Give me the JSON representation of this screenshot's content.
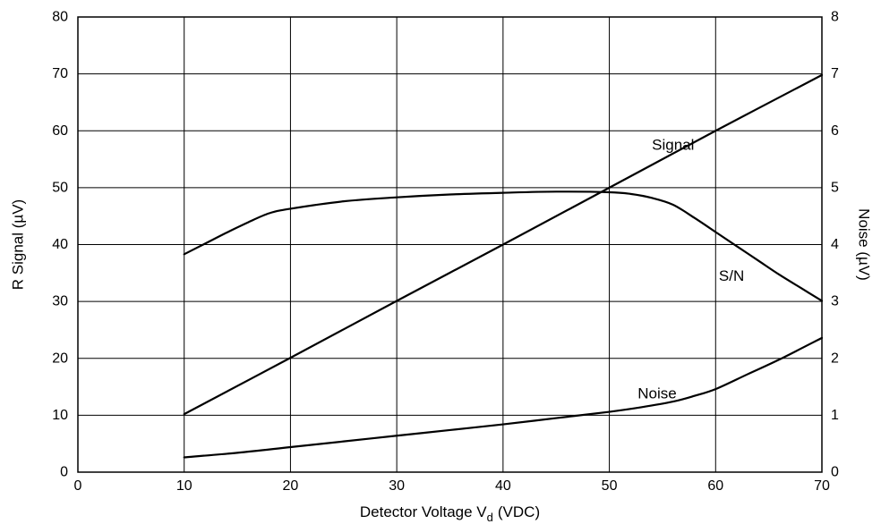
{
  "chart_data": {
    "type": "line",
    "xlabel": "Detector Voltage V",
    "xlabel_subscript": "d",
    "xlabel_unit": "(VDC)",
    "ylabel_left": "R Signal (µV)",
    "ylabel_right": "Noise (µV)",
    "xlim": [
      0,
      70
    ],
    "ylim_left": [
      0,
      80
    ],
    "ylim_right": [
      0,
      8
    ],
    "x_ticks": [
      "0",
      "10",
      "20",
      "30",
      "40",
      "50",
      "60",
      "70"
    ],
    "y_ticks_left": [
      "0",
      "10",
      "20",
      "30",
      "40",
      "50",
      "60",
      "70",
      "80"
    ],
    "y_ticks_right": [
      "0",
      "1",
      "2",
      "3",
      "4",
      "5",
      "6",
      "7",
      "8"
    ],
    "grid": true,
    "series": [
      {
        "name": "Signal",
        "axis": "left",
        "x": [
          10,
          20,
          30,
          40,
          50,
          60,
          70
        ],
        "y": [
          10.2,
          20.1,
          30.1,
          40.0,
          50.0,
          60.0,
          69.8
        ]
      },
      {
        "name": "S/N",
        "axis": "left",
        "x": [
          10,
          12,
          14,
          16,
          18,
          20,
          25,
          30,
          35,
          40,
          45,
          50,
          52,
          54,
          56,
          58,
          60,
          62,
          64,
          66,
          68,
          70
        ],
        "y": [
          38.3,
          40.2,
          42.1,
          43.9,
          45.5,
          46.3,
          47.6,
          48.3,
          48.8,
          49.1,
          49.3,
          49.2,
          48.9,
          48.2,
          47.0,
          44.7,
          42.2,
          39.7,
          37.2,
          34.7,
          32.4,
          30.1
        ]
      },
      {
        "name": "Noise",
        "axis": "right",
        "x": [
          10,
          15,
          20,
          25,
          30,
          35,
          40,
          45,
          50,
          53,
          56,
          58,
          60,
          63,
          66,
          70
        ],
        "y": [
          0.26,
          0.34,
          0.44,
          0.54,
          0.64,
          0.74,
          0.84,
          0.95,
          1.06,
          1.14,
          1.24,
          1.34,
          1.46,
          1.72,
          1.98,
          2.36
        ]
      }
    ],
    "annotations": [
      {
        "text": "Signal",
        "series": "Signal",
        "x": 56,
        "y": 57.5
      },
      {
        "text": "S/N",
        "series": "S/N",
        "x": 61.5,
        "y": 34.5
      },
      {
        "text": "Noise",
        "series": "Noise",
        "x": 54.5,
        "y": 13.8
      }
    ]
  }
}
